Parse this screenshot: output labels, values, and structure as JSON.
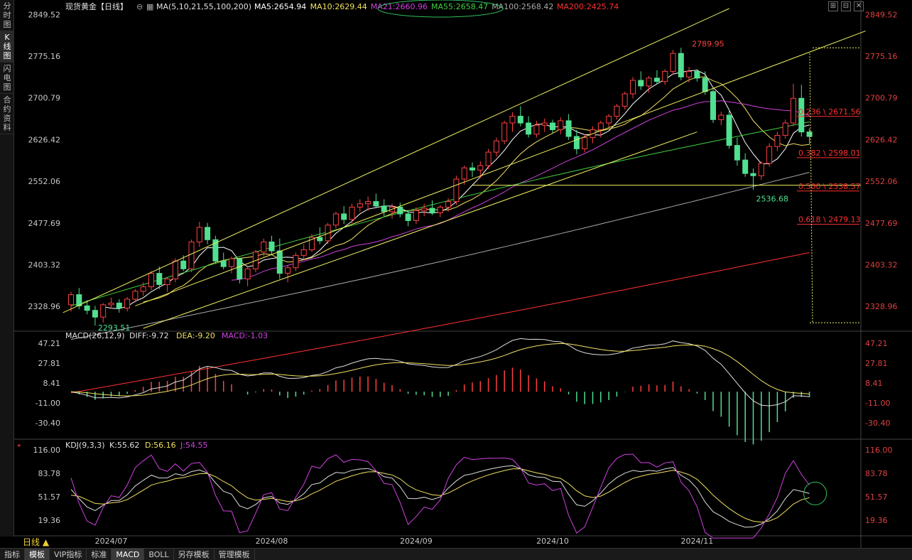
{
  "left_tabs": [
    {
      "label": "分时图",
      "active": false
    },
    {
      "label": "K线图",
      "active": true
    },
    {
      "label": "闪电图",
      "active": false
    },
    {
      "label": "合约资料",
      "active": false
    }
  ],
  "header": {
    "symbol": "现货黄金【日线】",
    "ma_params": "MA(5,10,21,55,100,200)",
    "ma": [
      {
        "text": "MA5:2654.94",
        "color": "#ffffff"
      },
      {
        "text": "MA10:2629.44",
        "color": "#f0e060"
      },
      {
        "text": "MA21:2660.96",
        "color": "#d040e0"
      },
      {
        "text": "MA55:2658.47",
        "color": "#40d040"
      },
      {
        "text": "MA100:2568.42",
        "color": "#aaaaaa"
      },
      {
        "text": "MA200:2425.74",
        "color": "#ff3030"
      }
    ]
  },
  "window_tools": [
    "⊞",
    "⊟",
    "✕"
  ],
  "period_button": "日线 ▲",
  "bottom_tabs": [
    {
      "label": "指标",
      "active": false
    },
    {
      "label": "模板",
      "active": true
    },
    {
      "label": "VIP指标",
      "active": false
    },
    {
      "label": "标准",
      "active": false
    },
    {
      "label": "MACD",
      "active": true
    },
    {
      "label": "BOLL",
      "active": false
    },
    {
      "label": "另存模板",
      "active": false
    },
    {
      "label": "管理模板",
      "active": false
    }
  ],
  "macd_header": {
    "name": "MACD(26,12,9)",
    "diff": "DIFF:-9.72",
    "dea": "DEA:-9.20",
    "macd": "MACD:-1.03"
  },
  "kdj_header": {
    "name": "KDJ(9,3,3)",
    "k": "K:55.62",
    "d": "D:56.16",
    "j": "J:54.55"
  },
  "chart_data": [
    {
      "type": "candlestick",
      "id": "price",
      "ylim": [
        2290,
        2860
      ],
      "yticks": [
        "2849.52",
        "2775.16",
        "2700.79",
        "2626.42",
        "2552.06",
        "2477.69",
        "2403.32",
        "2328.96"
      ],
      "xticks": [
        "2024/07",
        "2024/08",
        "2024/09",
        "2024/10",
        "2024/11"
      ],
      "annotations": [
        {
          "text": "2789.95",
          "kind": "high"
        },
        {
          "text": "2293.51",
          "kind": "low"
        },
        {
          "text": "2536.68",
          "kind": "low"
        }
      ],
      "fibonacci": [
        {
          "label": "0.236 \\ 2671.56",
          "value": 2671.56
        },
        {
          "label": "0.382 \\ 2598.01",
          "value": 2598.01
        },
        {
          "label": "0.500 \\ 2538.57",
          "value": 2538.57
        },
        {
          "label": "0.618 \\ 2479.13",
          "value": 2479.13
        }
      ],
      "candles": [
        [
          2332,
          2355,
          2320,
          2350
        ],
        [
          2350,
          2362,
          2324,
          2330
        ],
        [
          2330,
          2340,
          2315,
          2322
        ],
        [
          2322,
          2330,
          2295,
          2310
        ],
        [
          2310,
          2335,
          2300,
          2332
        ],
        [
          2332,
          2345,
          2325,
          2335
        ],
        [
          2335,
          2342,
          2318,
          2326
        ],
        [
          2326,
          2346,
          2320,
          2342
        ],
        [
          2342,
          2360,
          2336,
          2356
        ],
        [
          2356,
          2372,
          2348,
          2364
        ],
        [
          2364,
          2392,
          2358,
          2388
        ],
        [
          2388,
          2400,
          2360,
          2368
        ],
        [
          2368,
          2382,
          2355,
          2378
        ],
        [
          2378,
          2415,
          2372,
          2410
        ],
        [
          2410,
          2420,
          2392,
          2396
        ],
        [
          2396,
          2448,
          2390,
          2444
        ],
        [
          2444,
          2480,
          2435,
          2470
        ],
        [
          2470,
          2478,
          2440,
          2448
        ],
        [
          2448,
          2455,
          2405,
          2410
        ],
        [
          2410,
          2425,
          2395,
          2400
        ],
        [
          2400,
          2418,
          2388,
          2414
        ],
        [
          2414,
          2416,
          2370,
          2378
        ],
        [
          2378,
          2402,
          2365,
          2396
        ],
        [
          2396,
          2430,
          2390,
          2426
        ],
        [
          2426,
          2450,
          2418,
          2444
        ],
        [
          2444,
          2455,
          2420,
          2428
        ],
        [
          2428,
          2450,
          2378,
          2388
        ],
        [
          2388,
          2402,
          2372,
          2398
        ],
        [
          2398,
          2425,
          2392,
          2420
        ],
        [
          2420,
          2440,
          2412,
          2430
        ],
        [
          2430,
          2458,
          2426,
          2452
        ],
        [
          2452,
          2470,
          2440,
          2446
        ],
        [
          2446,
          2478,
          2440,
          2474
        ],
        [
          2474,
          2498,
          2468,
          2494
        ],
        [
          2494,
          2508,
          2476,
          2484
        ],
        [
          2484,
          2512,
          2478,
          2506
        ],
        [
          2506,
          2520,
          2498,
          2512
        ],
        [
          2512,
          2525,
          2500,
          2516
        ],
        [
          2516,
          2530,
          2505,
          2508
        ],
        [
          2508,
          2520,
          2490,
          2498
        ],
        [
          2498,
          2512,
          2485,
          2506
        ],
        [
          2506,
          2514,
          2488,
          2494
        ],
        [
          2494,
          2500,
          2472,
          2482
        ],
        [
          2482,
          2506,
          2476,
          2500
        ],
        [
          2500,
          2512,
          2490,
          2504
        ],
        [
          2504,
          2518,
          2492,
          2496
        ],
        [
          2496,
          2510,
          2488,
          2506
        ],
        [
          2506,
          2522,
          2498,
          2516
        ],
        [
          2516,
          2562,
          2510,
          2556
        ],
        [
          2556,
          2580,
          2546,
          2576
        ],
        [
          2576,
          2586,
          2560,
          2572
        ],
        [
          2572,
          2588,
          2558,
          2580
        ],
        [
          2580,
          2610,
          2574,
          2604
        ],
        [
          2604,
          2630,
          2596,
          2624
        ],
        [
          2624,
          2660,
          2618,
          2656
        ],
        [
          2656,
          2675,
          2640,
          2668
        ],
        [
          2668,
          2686,
          2650,
          2656
        ],
        [
          2656,
          2668,
          2630,
          2636
        ],
        [
          2636,
          2660,
          2630,
          2652
        ],
        [
          2652,
          2664,
          2640,
          2656
        ],
        [
          2656,
          2662,
          2638,
          2644
        ],
        [
          2644,
          2666,
          2636,
          2660
        ],
        [
          2660,
          2672,
          2626,
          2632
        ],
        [
          2632,
          2644,
          2600,
          2610
        ],
        [
          2610,
          2636,
          2604,
          2630
        ],
        [
          2630,
          2650,
          2620,
          2644
        ],
        [
          2644,
          2660,
          2630,
          2656
        ],
        [
          2656,
          2672,
          2648,
          2668
        ],
        [
          2668,
          2690,
          2662,
          2686
        ],
        [
          2686,
          2712,
          2680,
          2708
        ],
        [
          2708,
          2738,
          2700,
          2732
        ],
        [
          2732,
          2748,
          2715,
          2722
        ],
        [
          2722,
          2740,
          2710,
          2736
        ],
        [
          2736,
          2750,
          2725,
          2730
        ],
        [
          2730,
          2752,
          2724,
          2748
        ],
        [
          2748,
          2786,
          2742,
          2780
        ],
        [
          2780,
          2790,
          2732,
          2738
        ],
        [
          2738,
          2756,
          2728,
          2748
        ],
        [
          2748,
          2752,
          2730,
          2736
        ],
        [
          2736,
          2748,
          2706,
          2712
        ],
        [
          2712,
          2718,
          2656,
          2662
        ],
        [
          2662,
          2676,
          2652,
          2670
        ],
        [
          2670,
          2680,
          2610,
          2616
        ],
        [
          2616,
          2630,
          2580,
          2590
        ],
        [
          2590,
          2602,
          2560,
          2566
        ],
        [
          2566,
          2575,
          2537,
          2562
        ],
        [
          2562,
          2588,
          2555,
          2584
        ],
        [
          2584,
          2620,
          2578,
          2614
        ],
        [
          2614,
          2640,
          2606,
          2634
        ],
        [
          2634,
          2662,
          2628,
          2656
        ],
        [
          2656,
          2726,
          2650,
          2700
        ],
        [
          2700,
          2724,
          2632,
          2640
        ],
        [
          2640,
          2646,
          2618,
          2632
        ]
      ]
    },
    {
      "type": "bar+line",
      "id": "macd",
      "ylim": [
        -45,
        55
      ],
      "yticks": [
        "47.21",
        "27.81",
        "8.41",
        "-11.00",
        "-30.40"
      ]
    },
    {
      "type": "line",
      "id": "kdj",
      "ylim": [
        0,
        125
      ],
      "yticks": [
        "116.00",
        "83.78",
        "51.57",
        "19.36"
      ]
    }
  ]
}
